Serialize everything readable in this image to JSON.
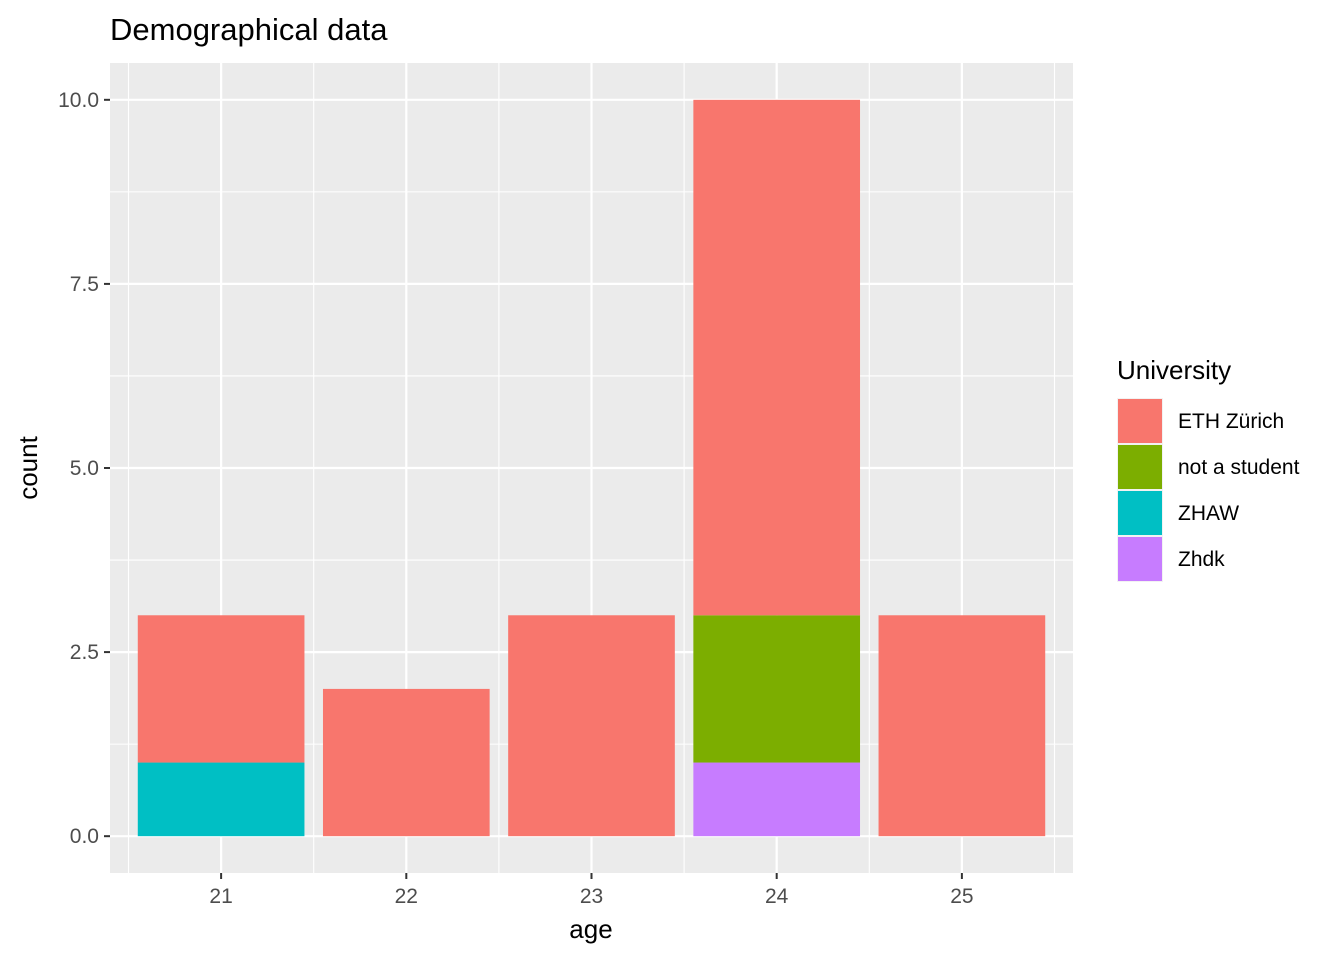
{
  "chart_data": {
    "type": "bar",
    "stacked": true,
    "title": "Demographical data",
    "xlabel": "age",
    "ylabel": "count",
    "categories": [
      "21",
      "22",
      "23",
      "24",
      "25"
    ],
    "ylim": [
      -0.5,
      10.5
    ],
    "yticks": [
      "0.0",
      "2.5",
      "5.0",
      "7.5",
      "10.0"
    ],
    "ytick_values": [
      0,
      2.5,
      5,
      7.5,
      10
    ],
    "grid": true,
    "legend": {
      "title": "University",
      "placement": "right",
      "entries": [
        "ETH Zürich",
        "not a student",
        "ZHAW",
        "Zhdk"
      ]
    },
    "series": [
      {
        "name": "ETH Zürich",
        "color": "#F8766D",
        "values": [
          2,
          2,
          3,
          7,
          3
        ]
      },
      {
        "name": "not a student",
        "color": "#7CAE00",
        "values": [
          0,
          0,
          0,
          2,
          0
        ]
      },
      {
        "name": "ZHAW",
        "color": "#00BFC4",
        "values": [
          1,
          0,
          0,
          0,
          0
        ]
      },
      {
        "name": "Zhdk",
        "color": "#C77CFF",
        "values": [
          0,
          0,
          0,
          1,
          0
        ]
      }
    ],
    "stack_order_bottom_to_top": [
      "Zhdk",
      "ZHAW",
      "not a student",
      "ETH Zürich"
    ],
    "colors": {
      "panel": "#EBEBEB",
      "grid": "#FFFFFF"
    }
  }
}
